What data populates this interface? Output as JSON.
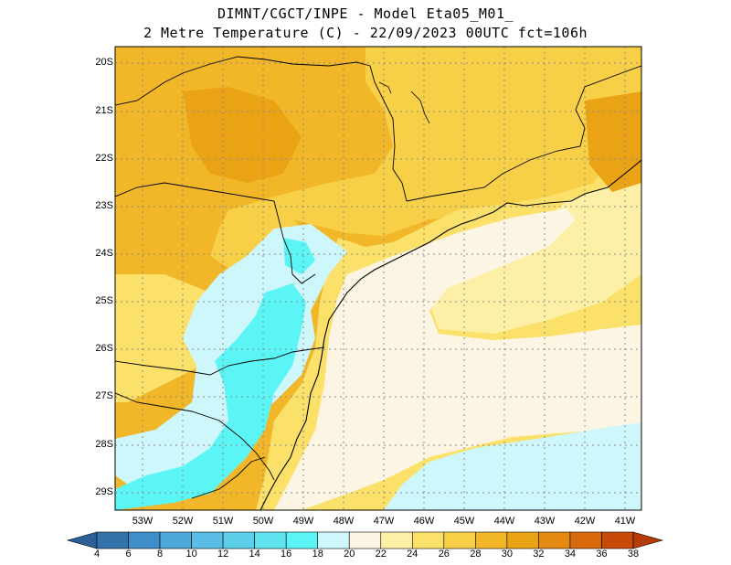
{
  "header": {
    "title_line1": "DIMNT/CGCT/INPE -  Model Eta05_M01_",
    "title_line2": "2 Metre Temperature (C) -  22/09/2023 00UTC fct=106h"
  },
  "map": {
    "lat_labels": [
      "20S",
      "21S",
      "22S",
      "23S",
      "24S",
      "25S",
      "26S",
      "27S",
      "28S",
      "29S"
    ],
    "lon_labels": [
      "53W",
      "52W",
      "51W",
      "50W",
      "49W",
      "48W",
      "47W",
      "46W",
      "45W",
      "44W",
      "43W",
      "42W",
      "41W"
    ],
    "gridlines": true,
    "colors": {
      "c_16_18": "#5cf5f5",
      "c_18_20": "#cdf7fa",
      "c_20_22": "#fdf5e3",
      "c_22_24": "#fdf0a6",
      "c_24_26": "#fbe16a",
      "c_26_28": "#f7d048",
      "c_28_30": "#f1b728",
      "c_30_32": "#eba316",
      "coast": "#000000"
    }
  },
  "colorbar": {
    "ticks": [
      "4",
      "6",
      "8",
      "10",
      "12",
      "14",
      "16",
      "18",
      "20",
      "22",
      "24",
      "26",
      "28",
      "30",
      "32",
      "34",
      "36",
      "38"
    ],
    "colors": [
      "#3372aa",
      "#3f8ec9",
      "#4fa8da",
      "#59bde6",
      "#5ccfe9",
      "#5fe3ef",
      "#5cf5f5",
      "#cdf7fa",
      "#fdf5e3",
      "#fdf0a6",
      "#fbe16a",
      "#f7d048",
      "#f1b728",
      "#eba316",
      "#e48a12",
      "#d96a0c",
      "#c84a08"
    ]
  }
}
